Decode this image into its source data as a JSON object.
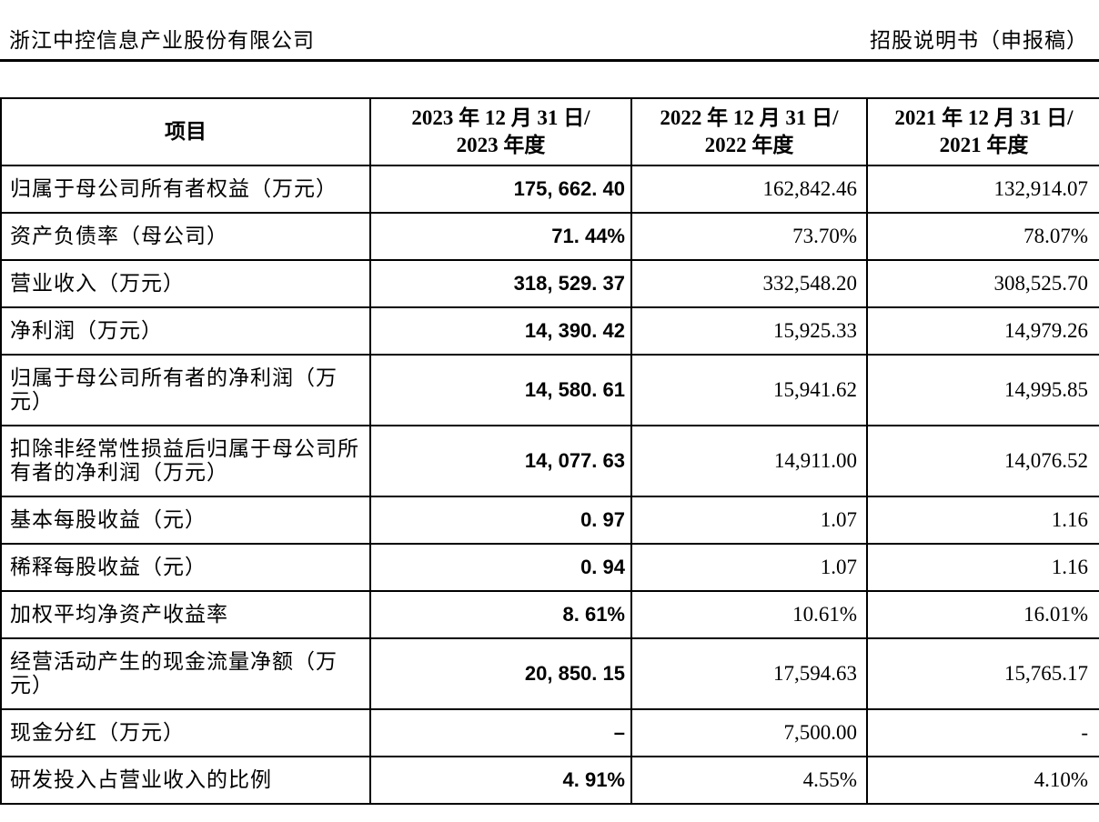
{
  "page_header": {
    "company": "浙江中控信息产业股份有限公司",
    "doc_title": "招股说明书（申报稿）"
  },
  "table": {
    "columns": [
      {
        "title": "项目",
        "line1": "项目",
        "line2": ""
      },
      {
        "line1": "2023 年 12 月 31 日/",
        "line2": "2023 年度"
      },
      {
        "line1": "2022 年 12 月 31 日/",
        "line2": "2022 年度"
      },
      {
        "line1": "2021 年 12 月 31 日/",
        "line2": "2021 年度"
      }
    ],
    "rows": [
      {
        "label": "归属于母公司所有者权益（万元）",
        "v2023": "175, 662. 40",
        "v2022": "162,842.46",
        "v2021": "132,914.07"
      },
      {
        "label": "资产负债率（母公司）",
        "v2023": "71. 44%",
        "v2022": "73.70%",
        "v2021": "78.07%"
      },
      {
        "label": "营业收入（万元）",
        "v2023": "318, 529. 37",
        "v2022": "332,548.20",
        "v2021": "308,525.70"
      },
      {
        "label": "净利润（万元）",
        "v2023": "14, 390. 42",
        "v2022": "15,925.33",
        "v2021": "14,979.26"
      },
      {
        "label": "归属于母公司所有者的净利润（万元）",
        "v2023": "14, 580. 61",
        "v2022": "15,941.62",
        "v2021": "14,995.85"
      },
      {
        "label": "扣除非经常性损益后归属于母公司所有者的净利润（万元）",
        "v2023": "14, 077. 63",
        "v2022": "14,911.00",
        "v2021": "14,076.52"
      },
      {
        "label": "基本每股收益（元）",
        "v2023": "0. 97",
        "v2022": "1.07",
        "v2021": "1.16"
      },
      {
        "label": "稀释每股收益（元）",
        "v2023": "0. 94",
        "v2022": "1.07",
        "v2021": "1.16"
      },
      {
        "label": "加权平均净资产收益率",
        "v2023": "8. 61%",
        "v2022": "10.61%",
        "v2021": "16.01%"
      },
      {
        "label": "经营活动产生的现金流量净额（万元）",
        "v2023": "20, 850. 15",
        "v2022": "17,594.63",
        "v2021": "15,765.17"
      },
      {
        "label": "现金分红（万元）",
        "v2023": "–",
        "v2022": "7,500.00",
        "v2021": "-"
      },
      {
        "label": "研发投入占营业收入的比例",
        "v2023": "4. 91%",
        "v2022": "4.55%",
        "v2021": "4.10%"
      }
    ]
  }
}
